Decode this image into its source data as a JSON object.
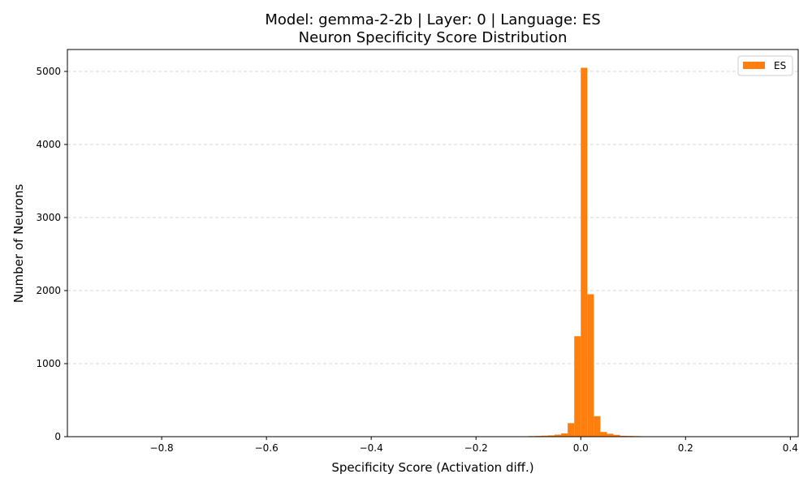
{
  "chart_data": {
    "type": "bar",
    "title_line1": "Model: gemma-2-2b | Layer: 0 | Language: ES",
    "title_line2": "Neuron Specificity Score Distribution",
    "xlabel": "Specificity Score (Activation diff.)",
    "ylabel": "Number of Neurons",
    "xlim": [
      -0.98,
      0.415
    ],
    "ylim": [
      0,
      5300
    ],
    "xticks": [
      -0.8,
      -0.6,
      -0.4,
      -0.2,
      0.0,
      0.2,
      0.4
    ],
    "xtick_labels": [
      "−0.8",
      "−0.6",
      "−0.4",
      "−0.2",
      "0.0",
      "0.2",
      "0.4"
    ],
    "yticks": [
      0,
      1000,
      2000,
      3000,
      4000,
      5000
    ],
    "ytick_labels": [
      "0",
      "1000",
      "2000",
      "3000",
      "4000",
      "5000"
    ],
    "grid": "y-dashed",
    "legend_position": "top-right",
    "bin_width": 0.0125,
    "series": [
      {
        "name": "ES",
        "color": "#ff7f0e",
        "bins": [
          {
            "x": -0.2375,
            "count": 5
          },
          {
            "x": -0.15,
            "count": 5
          },
          {
            "x": -0.1375,
            "count": 6
          },
          {
            "x": -0.1,
            "count": 8
          },
          {
            "x": -0.0875,
            "count": 10
          },
          {
            "x": -0.075,
            "count": 14
          },
          {
            "x": -0.0625,
            "count": 18
          },
          {
            "x": -0.05,
            "count": 28
          },
          {
            "x": -0.0375,
            "count": 45
          },
          {
            "x": -0.025,
            "count": 185
          },
          {
            "x": -0.0125,
            "count": 1375
          },
          {
            "x": 0.0,
            "count": 5050
          },
          {
            "x": 0.0125,
            "count": 1950
          },
          {
            "x": 0.025,
            "count": 280
          },
          {
            "x": 0.0375,
            "count": 65
          },
          {
            "x": 0.05,
            "count": 40
          },
          {
            "x": 0.0625,
            "count": 25
          },
          {
            "x": 0.075,
            "count": 12
          },
          {
            "x": 0.0875,
            "count": 10
          },
          {
            "x": 0.1,
            "count": 8
          },
          {
            "x": 0.1125,
            "count": 6
          },
          {
            "x": 0.125,
            "count": 5
          },
          {
            "x": 0.1375,
            "count": 4
          },
          {
            "x": 0.175,
            "count": 5
          }
        ]
      }
    ]
  }
}
